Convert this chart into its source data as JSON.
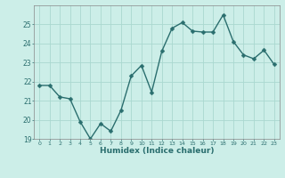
{
  "x_values": [
    0,
    1,
    2,
    3,
    4,
    5,
    6,
    7,
    8,
    9,
    10,
    11,
    12,
    13,
    14,
    15,
    16,
    17,
    18,
    19,
    20,
    21,
    22,
    23
  ],
  "y_values": [
    21.8,
    21.8,
    21.2,
    21.1,
    19.9,
    19.0,
    19.8,
    19.4,
    20.5,
    22.3,
    22.85,
    21.45,
    23.6,
    24.8,
    25.1,
    24.65,
    24.6,
    24.6,
    25.5,
    24.1,
    23.4,
    23.2,
    23.65,
    22.9
  ],
  "line_color": "#2a6e6e",
  "marker_color": "#2a6e6e",
  "bg_color": "#cceee8",
  "grid_color": "#aad8d0",
  "xlabel": "Humidex (Indice chaleur)",
  "ylim": [
    19,
    26
  ],
  "xlim": [
    -0.5,
    23.5
  ],
  "yticks": [
    19,
    20,
    21,
    22,
    23,
    24,
    25
  ],
  "xtick_labels": [
    "0",
    "1",
    "2",
    "3",
    "4",
    "5",
    "6",
    "7",
    "8",
    "9",
    "10",
    "11",
    "12",
    "13",
    "14",
    "15",
    "16",
    "17",
    "18",
    "19",
    "20",
    "21",
    "22",
    "23"
  ],
  "marker_size": 2.5,
  "line_width": 1.0
}
